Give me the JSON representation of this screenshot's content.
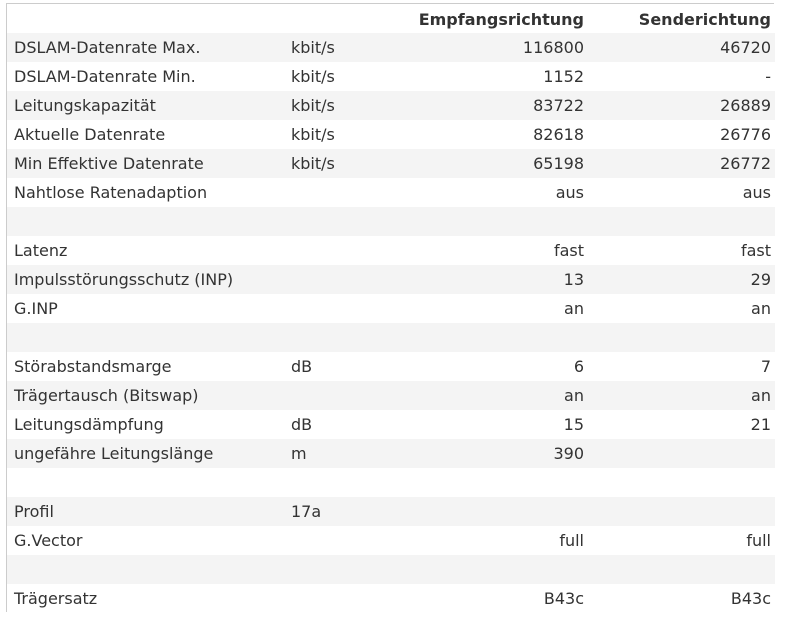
{
  "header": {
    "label": "",
    "unit": "",
    "downstream": "Empfangsrichtung",
    "upstream": "Senderichtung"
  },
  "rows": [
    {
      "label": "DSLAM-Datenrate Max.",
      "unit": "kbit/s",
      "down": "116800",
      "up": "46720"
    },
    {
      "label": "DSLAM-Datenrate Min.",
      "unit": "kbit/s",
      "down": "1152",
      "up": "-"
    },
    {
      "label": "Leitungskapazität",
      "unit": "kbit/s",
      "down": "83722",
      "up": "26889"
    },
    {
      "label": "Aktuelle Datenrate",
      "unit": "kbit/s",
      "down": "82618",
      "up": "26776"
    },
    {
      "label": "Min Effektive Datenrate",
      "unit": "kbit/s",
      "down": "65198",
      "up": "26772"
    },
    {
      "label": "Nahtlose Ratenadaption",
      "unit": "",
      "down": "aus",
      "up": "aus"
    },
    {
      "label": "",
      "unit": "",
      "down": "",
      "up": ""
    },
    {
      "label": "Latenz",
      "unit": "",
      "down": "fast",
      "up": "fast"
    },
    {
      "label": "Impulsstörungsschutz (INP)",
      "unit": "",
      "down": "13",
      "up": "29"
    },
    {
      "label": "G.INP",
      "unit": "",
      "down": "an",
      "up": "an"
    },
    {
      "label": "",
      "unit": "",
      "down": "",
      "up": ""
    },
    {
      "label": "Störabstandsmarge",
      "unit": "dB",
      "down": "6",
      "up": "7"
    },
    {
      "label": "Trägertausch (Bitswap)",
      "unit": "",
      "down": "an",
      "up": "an"
    },
    {
      "label": "Leitungsdämpfung",
      "unit": "dB",
      "down": "15",
      "up": "21"
    },
    {
      "label": "ungefähre Leitungslänge",
      "unit": "m",
      "down": "390",
      "up": ""
    },
    {
      "label": "",
      "unit": "",
      "down": "",
      "up": ""
    },
    {
      "label": "Profil",
      "unit": "17a",
      "down": "",
      "up": ""
    },
    {
      "label": "G.Vector",
      "unit": "",
      "down": "full",
      "up": "full"
    },
    {
      "label": "",
      "unit": "",
      "down": "",
      "up": ""
    },
    {
      "label": "Trägersatz",
      "unit": "",
      "down": "B43c",
      "up": "B43c"
    }
  ],
  "colors": {
    "row_shade": "#f4f4f4",
    "row_plain": "#ffffff",
    "border": "#cccccc",
    "text": "#333333"
  }
}
